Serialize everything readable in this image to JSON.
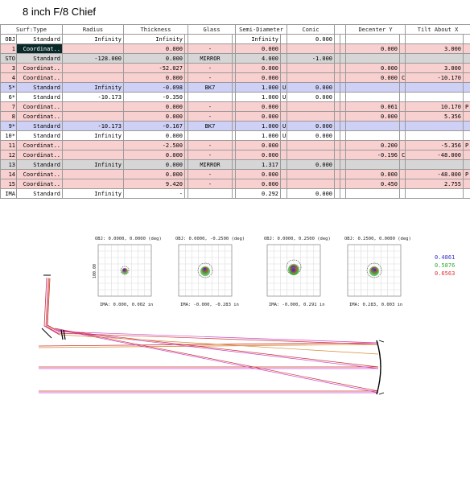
{
  "title": "8 inch F/8 Chief",
  "headers": [
    "Surf:Type",
    "Radius",
    "Thickness",
    "Glass",
    "Semi-Diameter",
    "Conic",
    "Decenter Y",
    "Tilt About X"
  ],
  "rows": [
    {
      "surf": "OBJ",
      "type": "Standard",
      "radius": "Infinity",
      "thickness": "Infinity",
      "glass": "",
      "semi": "Infinity",
      "sd_flag": "",
      "conic": "0.000",
      "decy": "",
      "decy_flag": "",
      "tilt": "",
      "tilt_flag": "",
      "band": "white"
    },
    {
      "surf": "1",
      "type": "Coordinat..",
      "radius": "",
      "thickness": "0.000",
      "glass": "-",
      "semi": "0.000",
      "sd_flag": "",
      "conic": "",
      "decy": "0.000",
      "decy_flag": "",
      "tilt": "3.000",
      "tilt_flag": "",
      "band": "pink",
      "selected": true
    },
    {
      "surf": "STO",
      "type": "Standard",
      "radius": "-128.000",
      "thickness": "0.000",
      "glass": "MIRROR",
      "semi": "4.000",
      "sd_flag": "",
      "conic": "-1.000",
      "decy": "",
      "decy_flag": "",
      "tilt": "",
      "tilt_flag": "",
      "band": "gray"
    },
    {
      "surf": "3",
      "type": "Coordinat..",
      "radius": "",
      "thickness": "-52.027",
      "glass": "-",
      "semi": "0.000",
      "sd_flag": "",
      "conic": "",
      "decy": "0.000",
      "decy_flag": "",
      "tilt": "3.000",
      "tilt_flag": "",
      "band": "pink"
    },
    {
      "surf": "4",
      "type": "Coordinat..",
      "radius": "",
      "thickness": "0.000",
      "glass": "-",
      "semi": "0.000",
      "sd_flag": "",
      "conic": "",
      "decy": "0.000",
      "decy_flag": "C",
      "tilt": "-10.170",
      "tilt_flag": "",
      "band": "pink"
    },
    {
      "surf": "5*",
      "type": "Standard",
      "radius": "Infinity",
      "thickness": "-0.098",
      "glass": "BK7",
      "semi": "1.000",
      "sd_flag": "U",
      "conic": "0.000",
      "decy": "",
      "decy_flag": "",
      "tilt": "",
      "tilt_flag": "",
      "band": "blue"
    },
    {
      "surf": "6*",
      "type": "Standard",
      "radius": "-10.173",
      "thickness": "-0.350",
      "glass": "",
      "semi": "1.000",
      "sd_flag": "U",
      "conic": "0.000",
      "decy": "",
      "decy_flag": "",
      "tilt": "",
      "tilt_flag": "",
      "band": "white"
    },
    {
      "surf": "7",
      "type": "Coordinat..",
      "radius": "",
      "thickness": "0.000",
      "glass": "-",
      "semi": "0.000",
      "sd_flag": "",
      "conic": "",
      "decy": "0.061",
      "decy_flag": "",
      "tilt": "10.170",
      "tilt_flag": "P",
      "band": "pink"
    },
    {
      "surf": "8",
      "type": "Coordinat..",
      "radius": "",
      "thickness": "0.000",
      "glass": "-",
      "semi": "0.000",
      "sd_flag": "",
      "conic": "",
      "decy": "0.000",
      "decy_flag": "",
      "tilt": "5.356",
      "tilt_flag": "",
      "band": "pink"
    },
    {
      "surf": "9*",
      "type": "Standard",
      "radius": "-10.173",
      "thickness": "-0.167",
      "glass": "BK7",
      "semi": "1.000",
      "sd_flag": "U",
      "conic": "0.000",
      "decy": "",
      "decy_flag": "",
      "tilt": "",
      "tilt_flag": "",
      "band": "blue"
    },
    {
      "surf": "10*",
      "type": "Standard",
      "radius": "Infinity",
      "thickness": "0.000",
      "glass": "",
      "semi": "1.000",
      "sd_flag": "U",
      "conic": "0.000",
      "decy": "",
      "decy_flag": "",
      "tilt": "",
      "tilt_flag": "",
      "band": "white"
    },
    {
      "surf": "11",
      "type": "Coordinat..",
      "radius": "",
      "thickness": "-2.500",
      "glass": "-",
      "semi": "0.000",
      "sd_flag": "",
      "conic": "",
      "decy": "0.200",
      "decy_flag": "",
      "tilt": "-5.356",
      "tilt_flag": "P",
      "band": "pink"
    },
    {
      "surf": "12",
      "type": "Coordinat..",
      "radius": "",
      "thickness": "0.000",
      "glass": "-",
      "semi": "0.000",
      "sd_flag": "",
      "conic": "",
      "decy": "-0.196",
      "decy_flag": "C",
      "tilt": "-48.000",
      "tilt_flag": "",
      "band": "pink"
    },
    {
      "surf": "13",
      "type": "Standard",
      "radius": "Infinity",
      "thickness": "0.000",
      "glass": "MIRROR",
      "semi": "1.317",
      "sd_flag": "",
      "conic": "0.000",
      "decy": "",
      "decy_flag": "",
      "tilt": "",
      "tilt_flag": "",
      "band": "gray"
    },
    {
      "surf": "14",
      "type": "Coordinat..",
      "radius": "",
      "thickness": "0.000",
      "glass": "-",
      "semi": "0.000",
      "sd_flag": "",
      "conic": "",
      "decy": "0.000",
      "decy_flag": "",
      "tilt": "-48.000",
      "tilt_flag": "P",
      "band": "pink"
    },
    {
      "surf": "15",
      "type": "Coordinat..",
      "radius": "",
      "thickness": "9.420",
      "glass": "-",
      "semi": "0.000",
      "sd_flag": "",
      "conic": "",
      "decy": "0.450",
      "decy_flag": "",
      "tilt": "2.755",
      "tilt_flag": "",
      "band": "pink"
    },
    {
      "surf": "IMA",
      "type": "Standard",
      "radius": "Infinity",
      "thickness": "-",
      "glass": "",
      "semi": "0.292",
      "sd_flag": "",
      "conic": "0.000",
      "decy": "",
      "decy_flag": "",
      "tilt": "",
      "tilt_flag": "",
      "band": "white"
    }
  ],
  "spot": {
    "panels": [
      {
        "obj": "OBJ: 0.0000, 0.0000 (deg)",
        "ima": "IMA: 0.000, 0.002 in"
      },
      {
        "obj": "OBJ: 0.0000, -0.2500 (deg)",
        "ima": "IMA: -0.000, -0.283 in"
      },
      {
        "obj": "OBJ: 0.0000, 0.2500 (deg)",
        "ima": "IMA: -0.000, 0.291 in"
      },
      {
        "obj": "OBJ: 0.2500, 0.0000 (deg)",
        "ima": "IMA: 0.283, 0.003 in"
      }
    ],
    "scale_label": "100.00",
    "wavelengths": [
      {
        "value": "0.4861",
        "color": "#3333cc"
      },
      {
        "value": "0.5876",
        "color": "#33aa33"
      },
      {
        "value": "0.6563",
        "color": "#dd3333"
      }
    ]
  },
  "colors": {
    "ray_red": "#cc3333",
    "ray_magenta": "#cc44cc",
    "ray_orange": "#d98c33"
  }
}
